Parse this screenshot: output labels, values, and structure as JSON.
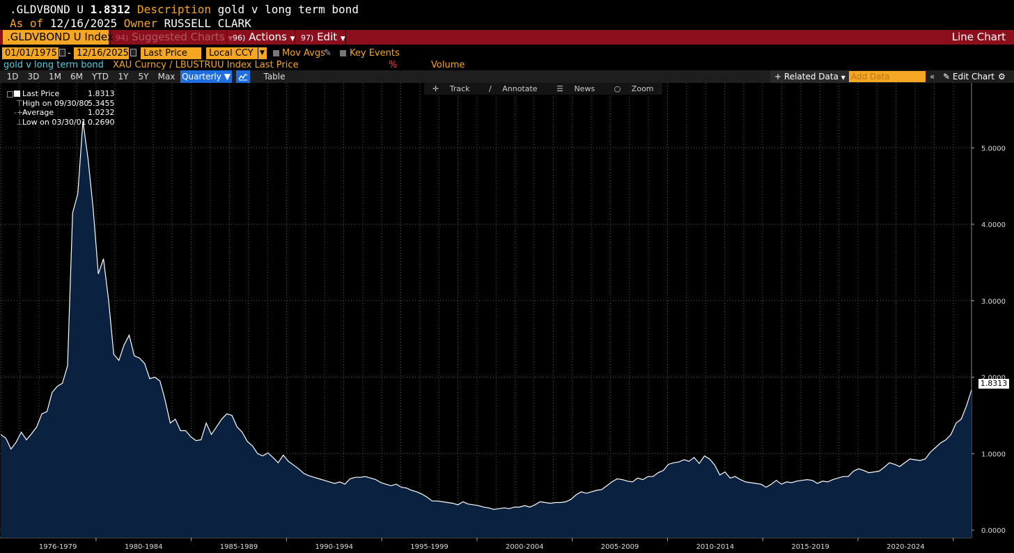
{
  "header": {
    "ticker": ".GLDVBOND U",
    "last_value": "1.8312",
    "description_label": "Description",
    "description": "gold v long term bond",
    "asof_label": "As of",
    "asof_date": "12/16/2025",
    "owner_label": "Owner",
    "owner": "RUSSELL CLARK"
  },
  "menu": {
    "index_tab": ".GLDVBOND U Index",
    "suggested": {
      "num": "94)",
      "label": "Suggested Charts"
    },
    "actions": {
      "num": "96)",
      "label": "Actions"
    },
    "edit": {
      "num": "97)",
      "label": "Edit"
    },
    "chart_type": "Line Chart"
  },
  "controls": {
    "start_date": "01/01/1975",
    "dash": "-",
    "end_date": "12/16/2025",
    "field": "Last Price",
    "currency": "Local CCY",
    "mov_avgs": "Mov Avgs",
    "key_events": "Key Events"
  },
  "series_row": {
    "name": "gold v long term bond",
    "formula": "XAU Curncy / LBUSTRUU Index Last Price",
    "unit": "%",
    "volume": "Volume"
  },
  "periods": [
    "1D",
    "3D",
    "1M",
    "6M",
    "YTD",
    "1Y",
    "5Y",
    "Max"
  ],
  "frequency": "Quarterly",
  "table_label": "Table",
  "toolbar": {
    "related": "Related Data",
    "add_placeholder": "Add Data",
    "edit_chart": "Edit Chart"
  },
  "tools": [
    "Track",
    "Annotate",
    "News",
    "Zoom"
  ],
  "legend": {
    "rows": [
      {
        "label": "Last Price",
        "value": "1.8313"
      },
      {
        "label": "High on 09/30/80",
        "value": "5.3455"
      },
      {
        "label": "Average",
        "value": "1.0232"
      },
      {
        "label": "Low on 03/30/01",
        "value": "0.2690"
      }
    ]
  },
  "colors": {
    "accent": "#f5a623",
    "menu_bar": "#8b0f1d",
    "area_fill": "#0b2140",
    "line": "#ffffff"
  },
  "chart_data": {
    "type": "area",
    "title": "gold v long term bond",
    "frequency": "Quarterly",
    "x_start": 1975.0,
    "x_end": 2025.96,
    "xlim": [
      1974.96,
      2025.96
    ],
    "ylim": [
      -0.1,
      5.85
    ],
    "y_ticks": [
      0,
      1,
      2,
      3,
      4,
      5
    ],
    "y_tick_labels": [
      "0.0000",
      "1.0000",
      "2.0000",
      "3.0000",
      "4.0000",
      "5.0000"
    ],
    "x_category_labels": [
      "1976-1979",
      "1980-1984",
      "1985-1989",
      "1990-1994",
      "1995-1999",
      "2000-2004",
      "2005-2009",
      "2010-2014",
      "2015-2019",
      "2020-2024"
    ],
    "x_category_ranges": [
      [
        1976,
        1980
      ],
      [
        1980,
        1985
      ],
      [
        1985,
        1990
      ],
      [
        1990,
        1995
      ],
      [
        1995,
        2000
      ],
      [
        2000,
        2005
      ],
      [
        2005,
        2010
      ],
      [
        2010,
        2015
      ],
      [
        2015,
        2020
      ],
      [
        2020,
        2025
      ]
    ],
    "last_value_label": "1.8313",
    "grid": true,
    "series": [
      {
        "name": "gold v long term bond",
        "values": [
          1.25,
          1.2,
          1.06,
          1.15,
          1.28,
          1.18,
          1.26,
          1.35,
          1.52,
          1.55,
          1.8,
          1.88,
          1.92,
          2.15,
          4.15,
          4.4,
          5.35,
          4.85,
          4.2,
          3.35,
          3.55,
          3.0,
          2.3,
          2.22,
          2.42,
          2.55,
          2.28,
          2.25,
          2.18,
          1.98,
          2.0,
          1.95,
          1.7,
          1.4,
          1.45,
          1.3,
          1.3,
          1.22,
          1.17,
          1.18,
          1.4,
          1.25,
          1.35,
          1.45,
          1.52,
          1.5,
          1.35,
          1.28,
          1.16,
          1.1,
          1.0,
          0.97,
          1.01,
          0.95,
          0.88,
          0.98,
          0.9,
          0.85,
          0.8,
          0.74,
          0.71,
          0.69,
          0.67,
          0.65,
          0.63,
          0.61,
          0.63,
          0.6,
          0.67,
          0.69,
          0.69,
          0.7,
          0.68,
          0.66,
          0.62,
          0.6,
          0.58,
          0.6,
          0.56,
          0.55,
          0.52,
          0.5,
          0.47,
          0.43,
          0.38,
          0.38,
          0.37,
          0.36,
          0.35,
          0.33,
          0.37,
          0.34,
          0.33,
          0.32,
          0.3,
          0.29,
          0.27,
          0.28,
          0.29,
          0.28,
          0.3,
          0.3,
          0.32,
          0.3,
          0.33,
          0.37,
          0.36,
          0.35,
          0.36,
          0.36,
          0.37,
          0.4,
          0.46,
          0.5,
          0.48,
          0.5,
          0.52,
          0.53,
          0.58,
          0.63,
          0.67,
          0.66,
          0.64,
          0.63,
          0.68,
          0.66,
          0.7,
          0.7,
          0.75,
          0.78,
          0.86,
          0.88,
          0.89,
          0.92,
          0.9,
          0.95,
          0.87,
          0.97,
          0.93,
          0.85,
          0.72,
          0.76,
          0.68,
          0.7,
          0.66,
          0.63,
          0.62,
          0.61,
          0.6,
          0.56,
          0.6,
          0.65,
          0.6,
          0.63,
          0.62,
          0.64,
          0.65,
          0.66,
          0.65,
          0.61,
          0.64,
          0.63,
          0.66,
          0.68,
          0.7,
          0.7,
          0.77,
          0.8,
          0.78,
          0.75,
          0.76,
          0.77,
          0.82,
          0.88,
          0.86,
          0.83,
          0.88,
          0.93,
          0.92,
          0.91,
          0.93,
          1.02,
          1.08,
          1.14,
          1.18,
          1.25,
          1.4,
          1.45,
          1.62,
          1.8313
        ]
      }
    ]
  }
}
